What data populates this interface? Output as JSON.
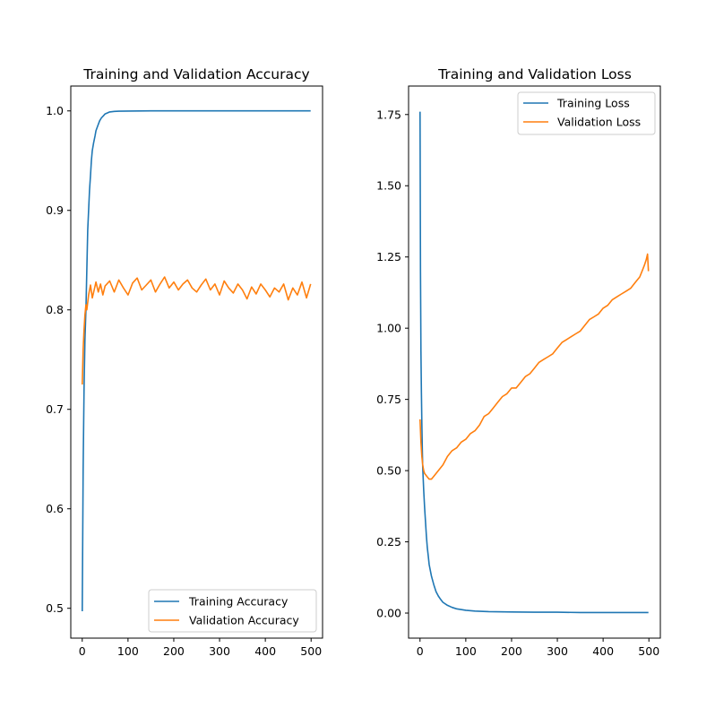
{
  "chart_data": [
    {
      "type": "line",
      "title": "Training and Validation Accuracy",
      "xlabel": "",
      "ylabel": "",
      "xlim": [
        -25,
        525
      ],
      "ylim": [
        0.47,
        1.025
      ],
      "xticks": [
        0,
        100,
        200,
        300,
        400,
        500
      ],
      "yticks": [
        0.5,
        0.6,
        0.7,
        0.8,
        0.9,
        1.0
      ],
      "ytick_labels": [
        "0.5",
        "0.6",
        "0.7",
        "0.8",
        "0.9",
        "1.0"
      ],
      "grid": false,
      "legend_position": "lower-right",
      "series": [
        {
          "name": "Training Accuracy",
          "color": "#1f77b4",
          "x": [
            0,
            2,
            4,
            6,
            8,
            10,
            12,
            14,
            16,
            18,
            20,
            22,
            25,
            28,
            30,
            34,
            38,
            42,
            46,
            50,
            55,
            60,
            70,
            80,
            100,
            150,
            200,
            250,
            300,
            350,
            400,
            450,
            499
          ],
          "y": [
            0.497,
            0.64,
            0.72,
            0.77,
            0.8,
            0.84,
            0.88,
            0.9,
            0.92,
            0.935,
            0.95,
            0.96,
            0.968,
            0.975,
            0.98,
            0.985,
            0.99,
            0.993,
            0.995,
            0.997,
            0.998,
            0.999,
            0.9995,
            0.9997,
            0.9999,
            1.0,
            1.0,
            1.0,
            1.0,
            1.0,
            1.0,
            1.0,
            1.0
          ]
        },
        {
          "name": "Validation Accuracy",
          "color": "#ff7f0e",
          "x": [
            0,
            2,
            4,
            6,
            8,
            10,
            14,
            18,
            22,
            26,
            30,
            35,
            40,
            45,
            50,
            60,
            70,
            80,
            90,
            100,
            110,
            120,
            130,
            140,
            150,
            160,
            170,
            180,
            190,
            200,
            210,
            220,
            230,
            240,
            250,
            260,
            270,
            280,
            290,
            300,
            310,
            320,
            330,
            340,
            350,
            360,
            370,
            380,
            390,
            400,
            410,
            420,
            430,
            440,
            450,
            460,
            470,
            480,
            490,
            499
          ],
          "y": [
            0.725,
            0.76,
            0.78,
            0.795,
            0.805,
            0.8,
            0.815,
            0.825,
            0.812,
            0.82,
            0.828,
            0.818,
            0.826,
            0.815,
            0.824,
            0.829,
            0.818,
            0.83,
            0.822,
            0.815,
            0.827,
            0.832,
            0.82,
            0.825,
            0.83,
            0.818,
            0.826,
            0.833,
            0.822,
            0.828,
            0.82,
            0.826,
            0.83,
            0.822,
            0.818,
            0.825,
            0.831,
            0.82,
            0.826,
            0.815,
            0.829,
            0.822,
            0.817,
            0.826,
            0.82,
            0.811,
            0.823,
            0.816,
            0.826,
            0.82,
            0.813,
            0.822,
            0.818,
            0.826,
            0.81,
            0.822,
            0.815,
            0.828,
            0.812,
            0.826
          ]
        }
      ]
    },
    {
      "type": "line",
      "title": "Training and Validation Loss",
      "xlabel": "",
      "ylabel": "",
      "xlim": [
        -25,
        525
      ],
      "ylim": [
        -0.088,
        1.85
      ],
      "xticks": [
        0,
        100,
        200,
        300,
        400,
        500
      ],
      "yticks": [
        0.0,
        0.25,
        0.5,
        0.75,
        1.0,
        1.25,
        1.5,
        1.75
      ],
      "ytick_labels": [
        "0.00",
        "0.25",
        "0.50",
        "0.75",
        "1.00",
        "1.25",
        "1.50",
        "1.75"
      ],
      "grid": false,
      "legend_position": "upper-right",
      "series": [
        {
          "name": "Training Loss",
          "color": "#1f77b4",
          "x": [
            0,
            1,
            2,
            3,
            4,
            5,
            6,
            8,
            10,
            12,
            14,
            16,
            18,
            20,
            25,
            30,
            35,
            40,
            45,
            50,
            60,
            70,
            80,
            100,
            120,
            150,
            200,
            250,
            300,
            350,
            400,
            450,
            499
          ],
          "y": [
            1.76,
            1.2,
            0.92,
            0.78,
            0.67,
            0.58,
            0.51,
            0.43,
            0.37,
            0.32,
            0.27,
            0.23,
            0.2,
            0.17,
            0.13,
            0.1,
            0.075,
            0.06,
            0.048,
            0.038,
            0.027,
            0.02,
            0.015,
            0.01,
            0.007,
            0.005,
            0.004,
            0.003,
            0.003,
            0.002,
            0.002,
            0.002,
            0.002
          ]
        },
        {
          "name": "Validation Loss",
          "color": "#ff7f0e",
          "x": [
            0,
            2,
            4,
            6,
            8,
            10,
            15,
            20,
            25,
            30,
            40,
            50,
            60,
            70,
            80,
            90,
            100,
            110,
            120,
            130,
            140,
            150,
            160,
            170,
            180,
            190,
            200,
            210,
            220,
            230,
            240,
            250,
            260,
            270,
            280,
            290,
            300,
            310,
            320,
            330,
            340,
            350,
            360,
            370,
            380,
            390,
            400,
            410,
            420,
            430,
            440,
            450,
            460,
            470,
            480,
            485,
            490,
            494,
            497,
            499
          ],
          "y": [
            0.68,
            0.6,
            0.55,
            0.52,
            0.5,
            0.49,
            0.48,
            0.47,
            0.47,
            0.48,
            0.5,
            0.52,
            0.55,
            0.57,
            0.58,
            0.6,
            0.61,
            0.63,
            0.64,
            0.66,
            0.69,
            0.7,
            0.72,
            0.74,
            0.76,
            0.77,
            0.79,
            0.79,
            0.81,
            0.83,
            0.84,
            0.86,
            0.88,
            0.89,
            0.9,
            0.91,
            0.93,
            0.95,
            0.96,
            0.97,
            0.98,
            0.99,
            1.01,
            1.03,
            1.04,
            1.05,
            1.07,
            1.08,
            1.1,
            1.11,
            1.12,
            1.13,
            1.14,
            1.16,
            1.18,
            1.2,
            1.22,
            1.24,
            1.26,
            1.2
          ]
        }
      ]
    }
  ]
}
